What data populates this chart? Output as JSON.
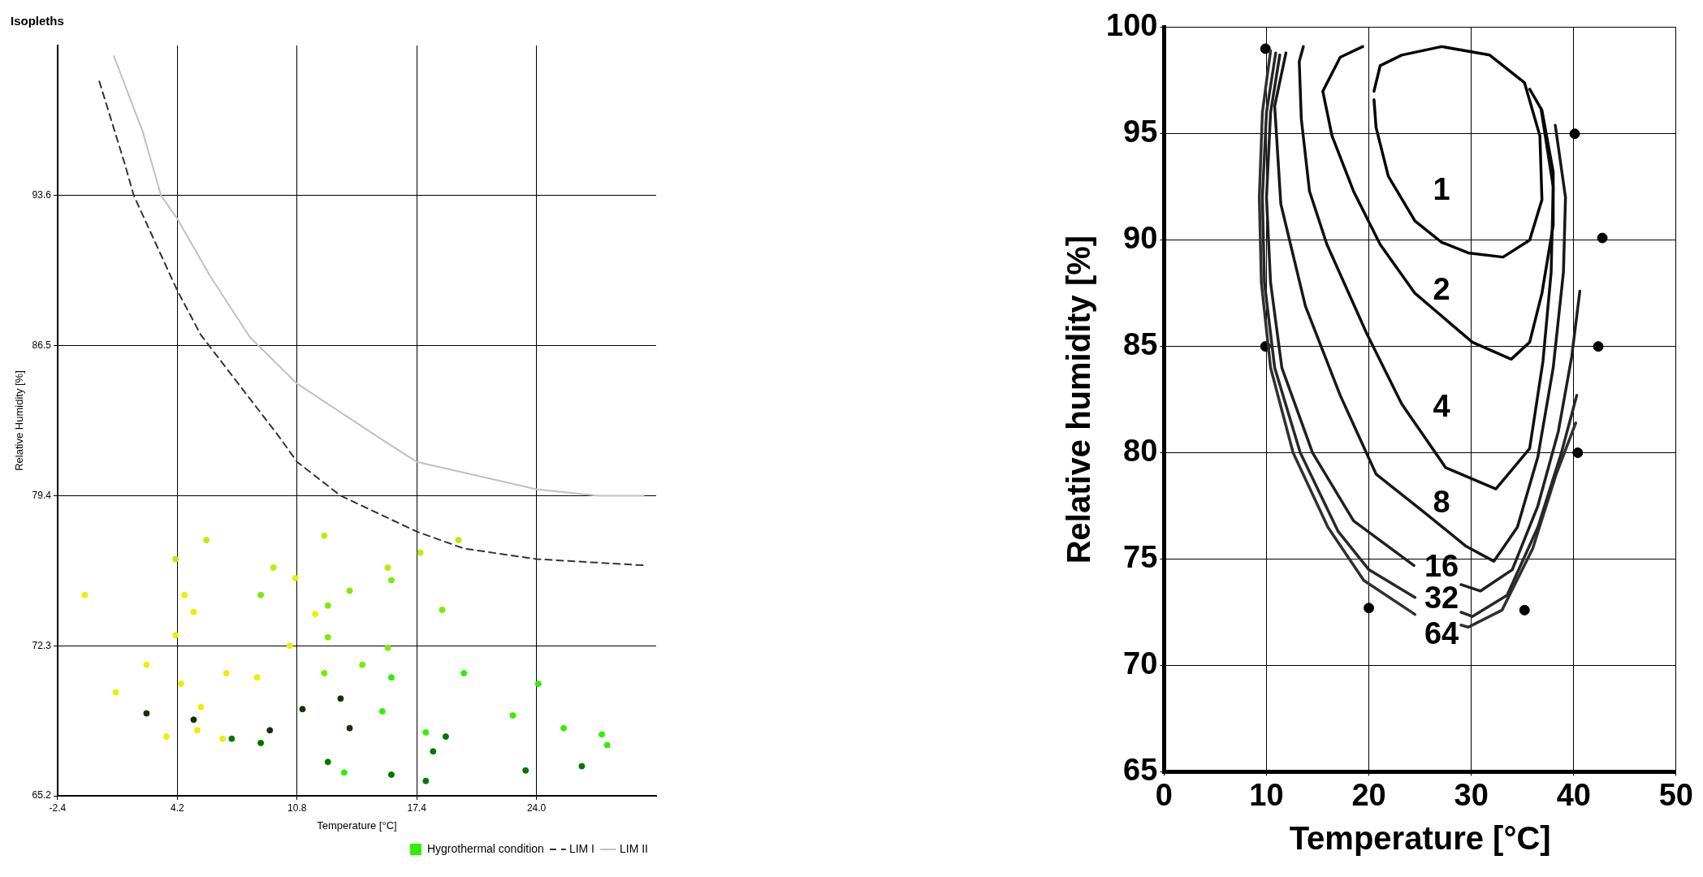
{
  "chart_data": [
    {
      "type": "scatter",
      "title": "Isopleths",
      "xlabel": "Temperature [°C]",
      "ylabel": "Relative Humidity [%]",
      "xlim": [
        -2.4,
        30.6
      ],
      "xticks": [
        -2.4,
        4.2,
        10.8,
        17.4,
        {
          "value": 24,
          "label": "24.0"
        }
      ],
      "ylim": [
        65.2,
        100.7
      ],
      "yticks": [
        65.2,
        72.3,
        79.4,
        86.5,
        93.6
      ],
      "grid": true,
      "legend": "bottom right",
      "series": [
        {
          "name": "Hygrothermal condition",
          "marker": "circle",
          "color": "#33ee00",
          "x": [
            -0.9,
            4.6,
            10.7,
            5.1,
            11.8,
            4.1,
            10.4,
            2.5,
            6.9,
            4.4,
            8.6,
            0.8,
            5.5,
            3.6,
            5.3,
            6.7,
            5.8,
            12.3,
            4.1,
            17.6,
            19.7,
            9.5,
            15.8,
            8.8,
            13.7,
            16.0,
            12.5,
            18.8,
            12.5,
            15.8,
            12.3,
            14.4,
            16.0,
            20.0,
            24.1,
            15.5,
            22.7,
            17.9,
            25.5,
            27.6,
            27.9,
            13.4,
            17.9,
            26.5,
            23.4,
            16.0,
            12.5,
            19.0,
            8.8,
            7.2,
            18.3,
            2.5,
            13.2,
            11.1,
            5.1,
            13.7,
            9.3
          ],
          "values": [
            74.7,
            74.7,
            75.5,
            73.9,
            73.8,
            72.8,
            72.3,
            71.4,
            71.0,
            70.5,
            70.8,
            70.1,
            69.4,
            68.0,
            68.3,
            67.9,
            77.3,
            77.5,
            76.4,
            76.7,
            77.3,
            76.0,
            76.0,
            74.7,
            74.9,
            75.4,
            74.2,
            74.0,
            72.7,
            72.2,
            71.0,
            71.4,
            70.8,
            71.0,
            70.5,
            69.2,
            69.0,
            68.2,
            68.4,
            68.1,
            67.6,
            66.3,
            65.9,
            66.6,
            66.4,
            66.2,
            66.8,
            68.0,
            67.7,
            67.9,
            67.3,
            69.1,
            69.8,
            69.3,
            68.8,
            68.4,
            68.3
          ],
          "colors": [
            "#eeee00",
            "#eeee00",
            "#eeee00",
            "#eeee00",
            "#eeee00",
            "#eeee00",
            "#eeee00",
            "#eeee00",
            "#eeee00",
            "#eeee00",
            "#eeee00",
            "#eeee00",
            "#eeee00",
            "#eeee00",
            "#eeee00",
            "#eeee00",
            "#bbee00",
            "#bbee00",
            "#bbee00",
            "#bbee00",
            "#bbee00",
            "#bbee00",
            "#bbee00",
            "#77ee00",
            "#77ee00",
            "#77ee00",
            "#77ee00",
            "#77ee00",
            "#77ee00",
            "#77ee00",
            "#77ee00",
            "#77ee00",
            "#33ee00",
            "#33ee00",
            "#33ee00",
            "#33ee00",
            "#33ee00",
            "#33ee00",
            "#33ee00",
            "#33ee00",
            "#33ee00",
            "#33ee00",
            "#007700",
            "#007700",
            "#007700",
            "#007700",
            "#007700",
            "#007700",
            "#007700",
            "#007700",
            "#007700",
            "#113300",
            "#113300",
            "#113300",
            "#113300",
            "#113300",
            "#113300"
          ]
        },
        {
          "name": "LIM I",
          "type": "line",
          "marker": "none",
          "line_style": "dashed",
          "color": "#333333",
          "x": [
            -0.1,
            1.3,
            1.8,
            4.2,
            5.5,
            9.8,
            10.8,
            13.2,
            17.4,
            20.0,
            24.0,
            30.0
          ],
          "values": [
            99.0,
            95.1,
            93.6,
            89.1,
            87.0,
            82.2,
            81.0,
            79.4,
            77.7,
            76.9,
            76.4,
            76.1
          ]
        },
        {
          "name": "LIM II",
          "type": "line",
          "marker": "none",
          "line_style": "solid",
          "color": "#c0c0c0",
          "x": [
            0.7,
            2.3,
            3.3,
            4.2,
            6.0,
            8.2,
            10.8,
            15.4,
            17.4,
            24.0,
            27.4,
            29.9
          ],
          "values": [
            100.2,
            96.6,
            93.6,
            92.5,
            89.8,
            86.9,
            84.7,
            82.1,
            81.0,
            79.7,
            79.4,
            79.4
          ]
        }
      ]
    },
    {
      "type": "line",
      "xlabel": "Temperature [°C]",
      "ylabel": "Relative humidity [%]",
      "xlim": [
        0,
        50
      ],
      "xticks": [
        0,
        10,
        20,
        30,
        40,
        50
      ],
      "ylim": [
        65,
        100
      ],
      "yticks": [
        65,
        70,
        75,
        80,
        85,
        90,
        95,
        100
      ],
      "grid": true,
      "marker": "none",
      "line_style": "solid",
      "series": [
        {
          "color": "#040404",
          "x": [
            20.5,
            21.1,
            23.2,
            27.1,
            31.8,
            35.2,
            36.7,
            36.9,
            35.7,
            33.1,
            29.7,
            27.1,
            24.5,
            21.9,
            20.7,
            20.5
          ],
          "values": [
            97.0,
            98.2,
            98.7,
            99.1,
            98.7,
            97.4,
            94.9,
            91.9,
            90.0,
            89.2,
            89.4,
            89.9,
            90.9,
            93.0,
            95.3,
            96.6
          ]
        },
        {
          "color": "#080808",
          "x": [
            19.4,
            17.2,
            15.5,
            16.4,
            18.5,
            21.1,
            24.5,
            30.1,
            33.9,
            35.7,
            36.9,
            38.0,
            38.0,
            36.9,
            35.7
          ],
          "values": [
            99.1,
            98.6,
            97.0,
            94.9,
            92.3,
            89.8,
            87.5,
            85.2,
            84.4,
            85.2,
            87.5,
            90.7,
            93.2,
            96.1,
            97.1
          ]
        },
        {
          "color": "#101010",
          "x": [
            13.6,
            13.2,
            13.4,
            14.2,
            15.9,
            19.8,
            23.2,
            27.5,
            32.4,
            35.7,
            37.0,
            37.8,
            38.0,
            36.8
          ],
          "values": [
            99.1,
            98.4,
            95.7,
            92.3,
            89.8,
            85.6,
            82.3,
            79.3,
            78.3,
            80.2,
            84.3,
            88.5,
            92.5,
            96.2
          ]
        },
        {
          "color": "#181818",
          "x": [
            11.9,
            10.8,
            11.4,
            13.8,
            17.2,
            20.7,
            25.4,
            29.5,
            32.2,
            34.5,
            36.5,
            38.0,
            39.0,
            39.2,
            38.2
          ],
          "values": [
            98.8,
            96.3,
            91.7,
            86.9,
            82.7,
            79.0,
            77.2,
            75.6,
            74.9,
            76.5,
            79.8,
            84.0,
            88.5,
            92.0,
            95.4
          ]
        },
        {
          "color": "#202020",
          "x": [
            11.3,
            10.4,
            10.0,
            10.4,
            11.5,
            14.5,
            18.5,
            24.4,
            27.1,
            29.0,
            30.9,
            34.0,
            36.5,
            38.5,
            39.8,
            40.6
          ],
          "values": [
            98.7,
            96.0,
            92.0,
            88.0,
            84.0,
            80.0,
            76.8,
            74.7,
            null,
            73.8,
            73.5,
            74.5,
            77.5,
            81.0,
            84.5,
            87.6
          ]
        },
        {
          "color": "#282828",
          "x": [
            10.9,
            10.0,
            9.6,
            9.8,
            10.8,
            13.3,
            17.0,
            20.0,
            24.5,
            27.1,
            29.0,
            30.1,
            33.5,
            36.5,
            38.8,
            40.3
          ],
          "values": [
            98.8,
            96.0,
            92.0,
            88.0,
            84.0,
            80.0,
            76.3,
            74.5,
            73.2,
            null,
            72.5,
            72.3,
            73.3,
            76.5,
            80.0,
            82.7
          ]
        },
        {
          "color": "#303030",
          "x": [
            10.4,
            9.6,
            9.3,
            9.5,
            10.4,
            12.6,
            16.0,
            19.5,
            24.5,
            27.1,
            29.0,
            29.7,
            33.0,
            36.0,
            38.3,
            40.2
          ],
          "values": [
            98.9,
            96.0,
            92.0,
            88.0,
            84.0,
            80.0,
            76.5,
            74.0,
            72.4,
            null,
            71.9,
            71.8,
            72.6,
            75.5,
            79.0,
            81.4
          ]
        },
        {
          "type": "scatter",
          "marker": "circle",
          "color": "#000000",
          "x": [
            9.9,
            40.1,
            42.8,
            42.4,
            9.9,
            40.4,
            20.0,
            35.2
          ],
          "values": [
            99.0,
            95.0,
            90.1,
            85.0,
            85.0,
            80.0,
            72.7,
            72.6
          ]
        }
      ],
      "annotations": [
        "1",
        "2",
        "4",
        "8",
        "16",
        "32",
        "64"
      ]
    }
  ]
}
